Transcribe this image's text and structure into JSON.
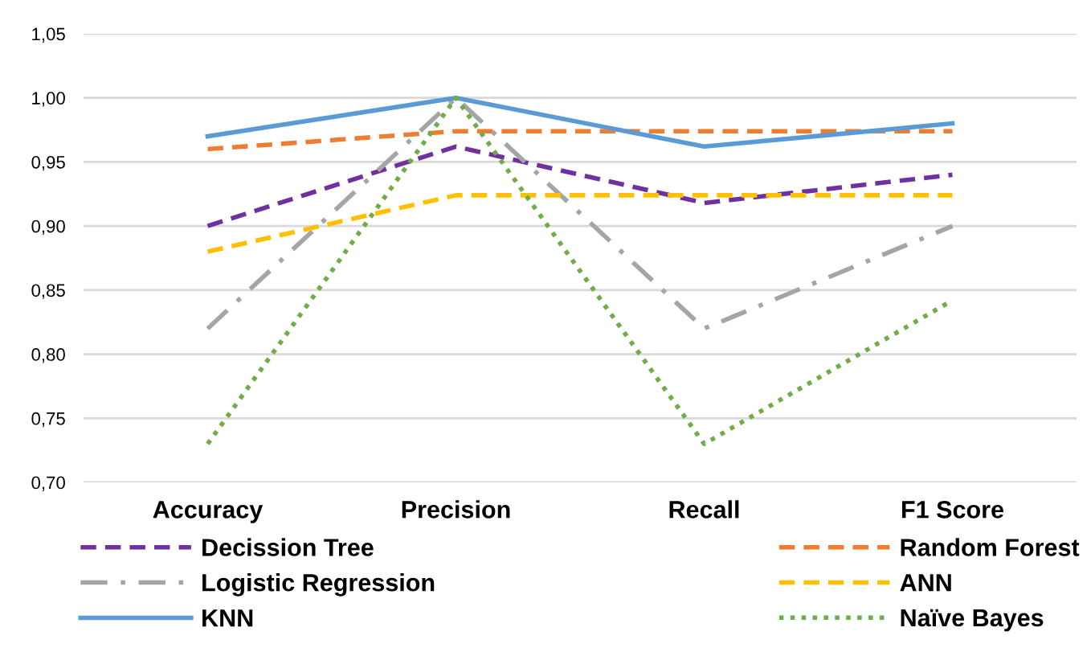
{
  "chart_data": {
    "type": "line",
    "categories": [
      "Accuracy",
      "Precision",
      "Recall",
      "F1 Score"
    ],
    "series": [
      {
        "name": "Decission Tree",
        "color": "#7030a0",
        "line_style": "dashed",
        "values": [
          0.9,
          0.962,
          0.918,
          0.94
        ]
      },
      {
        "name": "Random Forest",
        "color": "#ed7d31",
        "line_style": "dashed",
        "values": [
          0.96,
          0.974,
          0.974,
          0.974
        ]
      },
      {
        "name": "Logistic Regression",
        "color": "#a5a5a5",
        "line_style": "dashdot",
        "values": [
          0.82,
          1.0,
          0.82,
          0.9
        ]
      },
      {
        "name": "ANN",
        "color": "#ffc000",
        "line_style": "dashed",
        "values": [
          0.88,
          0.924,
          0.924,
          0.924
        ]
      },
      {
        "name": "KNN",
        "color": "#5b9bd5",
        "line_style": "solid",
        "values": [
          0.97,
          1.0,
          0.962,
          0.98
        ]
      },
      {
        "name": "Naïve Bayes",
        "color": "#70ad47",
        "line_style": "dotted",
        "values": [
          0.73,
          1.0,
          0.73,
          0.842
        ]
      }
    ],
    "ylim": [
      0.7,
      1.05
    ],
    "yticks": [
      {
        "value": 0.7,
        "label": "0,70"
      },
      {
        "value": 0.75,
        "label": "0,75"
      },
      {
        "value": 0.8,
        "label": "0,80"
      },
      {
        "value": 0.85,
        "label": "0,85"
      },
      {
        "value": 0.9,
        "label": "0,90"
      },
      {
        "value": 0.95,
        "label": "0,95"
      },
      {
        "value": 1.0,
        "label": "1,00"
      },
      {
        "value": 1.05,
        "label": "1,05"
      }
    ],
    "grid": "y",
    "legend": "bottom",
    "marker": "none"
  }
}
